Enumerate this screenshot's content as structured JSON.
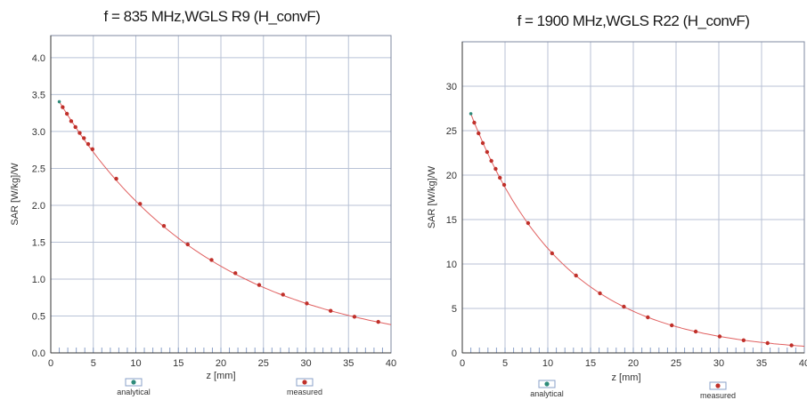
{
  "chart_data": [
    {
      "type": "line",
      "title": "f = 835 MHz,WGLS R9 (H_convF)",
      "xlabel": "z [mm]",
      "ylabel": "SAR [W/kg]/W",
      "xlim": [
        0,
        40
      ],
      "ylim": [
        0,
        4.3
      ],
      "xticks": [
        "0",
        "5",
        "10",
        "15",
        "20",
        "25",
        "30",
        "35",
        "40"
      ],
      "yticks": [
        "0.0",
        "0.5",
        "1.0",
        "1.5",
        "2.0",
        "2.5",
        "3.0",
        "3.5",
        "4.0"
      ],
      "grid": true,
      "legend": [
        {
          "label": "analytical",
          "color": "#2e8b7a"
        },
        {
          "label": "measured",
          "color": "#c0302a"
        }
      ],
      "analytical": {
        "a": 3.6,
        "k": 0.056,
        "x": [
          1,
          40
        ]
      },
      "series": [
        {
          "name": "measured",
          "x": [
            1.4,
            1.9,
            2.4,
            2.9,
            3.4,
            3.9,
            4.4,
            4.9,
            7.7,
            10.5,
            13.3,
            16.1,
            18.9,
            21.7,
            24.5,
            27.3,
            30.1,
            32.9,
            35.7,
            38.5
          ],
          "y": [
            3.33,
            3.24,
            3.14,
            3.06,
            2.98,
            2.91,
            2.83,
            2.76,
            2.36,
            2.02,
            1.72,
            1.47,
            1.26,
            1.08,
            0.92,
            0.79,
            0.67,
            0.57,
            0.49,
            0.42
          ]
        }
      ]
    },
    {
      "type": "line",
      "title": "f = 1900 MHz,WGLS R22 (H_convF)",
      "xlabel": "z [mm]",
      "ylabel": "SAR [W/kg]/W",
      "xlim": [
        0,
        40
      ],
      "ylim": [
        0,
        35
      ],
      "xticks": [
        "0",
        "5",
        "10",
        "15",
        "20",
        "25",
        "30",
        "35",
        "40"
      ],
      "yticks": [
        "0",
        "5",
        "10",
        "15",
        "20",
        "25",
        "30"
      ],
      "grid": true,
      "legend": [
        {
          "label": "analytical",
          "color": "#2e8b7a"
        },
        {
          "label": "measured",
          "color": "#c0302a"
        }
      ],
      "analytical": {
        "a": 29.5,
        "k": 0.092,
        "x": [
          1,
          40
        ]
      },
      "series": [
        {
          "name": "measured",
          "x": [
            1.4,
            1.9,
            2.4,
            2.9,
            3.4,
            3.9,
            4.4,
            4.9,
            7.7,
            10.5,
            13.3,
            16.1,
            18.9,
            21.7,
            24.5,
            27.3,
            30.1,
            32.9,
            35.7,
            38.5
          ],
          "y": [
            25.9,
            24.7,
            23.6,
            22.6,
            21.6,
            20.7,
            19.7,
            18.9,
            14.6,
            11.2,
            8.7,
            6.7,
            5.2,
            4.0,
            3.1,
            2.4,
            1.85,
            1.42,
            1.1,
            0.85
          ]
        }
      ]
    }
  ]
}
